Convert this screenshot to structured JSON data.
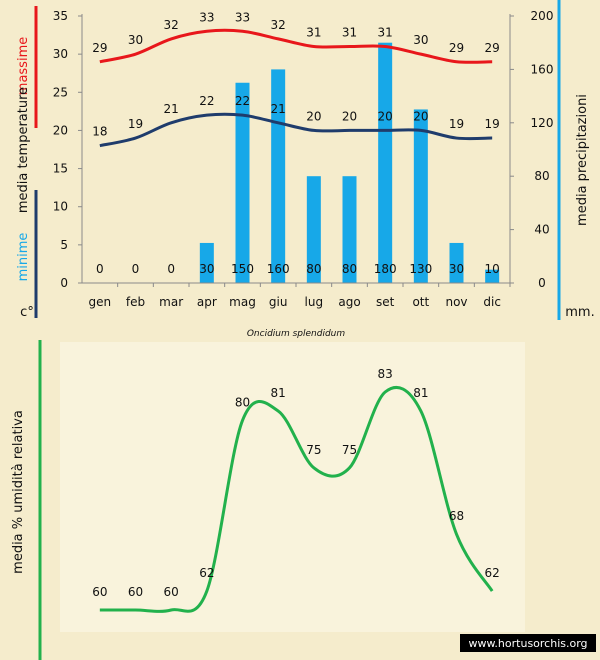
{
  "colors": {
    "background": "#f5eccc",
    "max_line": "#e8171b",
    "min_line": "#1f3c6c",
    "bars": "#17a8e8",
    "humidity_line": "#22b14c",
    "rain_bracket": "#17a8e8",
    "watermark_bg": "#000000"
  },
  "chart_data": [
    {
      "type": "bar+line",
      "subtitle": "Oncidium splendidum",
      "categories": [
        "gen",
        "feb",
        "mar",
        "apr",
        "mag",
        "giu",
        "lug",
        "ago",
        "set",
        "ott",
        "nov",
        "dic"
      ],
      "series": [
        {
          "name": "massime",
          "kind": "line",
          "axis": "left",
          "values": [
            29,
            30,
            32,
            33,
            33,
            32,
            31,
            31,
            31,
            30,
            29,
            29
          ]
        },
        {
          "name": "minime",
          "kind": "line",
          "axis": "left",
          "values": [
            18,
            19,
            21,
            22,
            22,
            21,
            20,
            20,
            20,
            20,
            19,
            19
          ]
        },
        {
          "name": "media precipitazioni",
          "kind": "bar",
          "axis": "right",
          "values": [
            0,
            0,
            0,
            30,
            150,
            160,
            80,
            80,
            180,
            130,
            30,
            10
          ]
        }
      ],
      "y_left": {
        "min": 0,
        "max": 35,
        "ticks": [
          "0",
          "5",
          "10",
          "15",
          "20",
          "25",
          "30",
          "35"
        ],
        "label_max": "massime",
        "label_main": "media temperature",
        "label_min": "minime",
        "unit": "c°"
      },
      "y_right": {
        "min": 0,
        "max": 200,
        "ticks": [
          "0",
          "40",
          "80",
          "120",
          "160",
          "200"
        ],
        "label": "media precipitazioni",
        "unit": "mm."
      },
      "grid": false
    },
    {
      "type": "line",
      "categories": [
        "gen",
        "feb",
        "mar",
        "apr",
        "mag",
        "giu",
        "lug",
        "ago",
        "set",
        "ott",
        "nov",
        "dic"
      ],
      "series": [
        {
          "name": "media % umidità relativa",
          "values": [
            60,
            60,
            60,
            62,
            80,
            81,
            75,
            75,
            83,
            81,
            68,
            62
          ]
        }
      ],
      "y_label": "media % umidità relativa",
      "grid": false
    }
  ],
  "watermark": "www.hortusorchis.org"
}
